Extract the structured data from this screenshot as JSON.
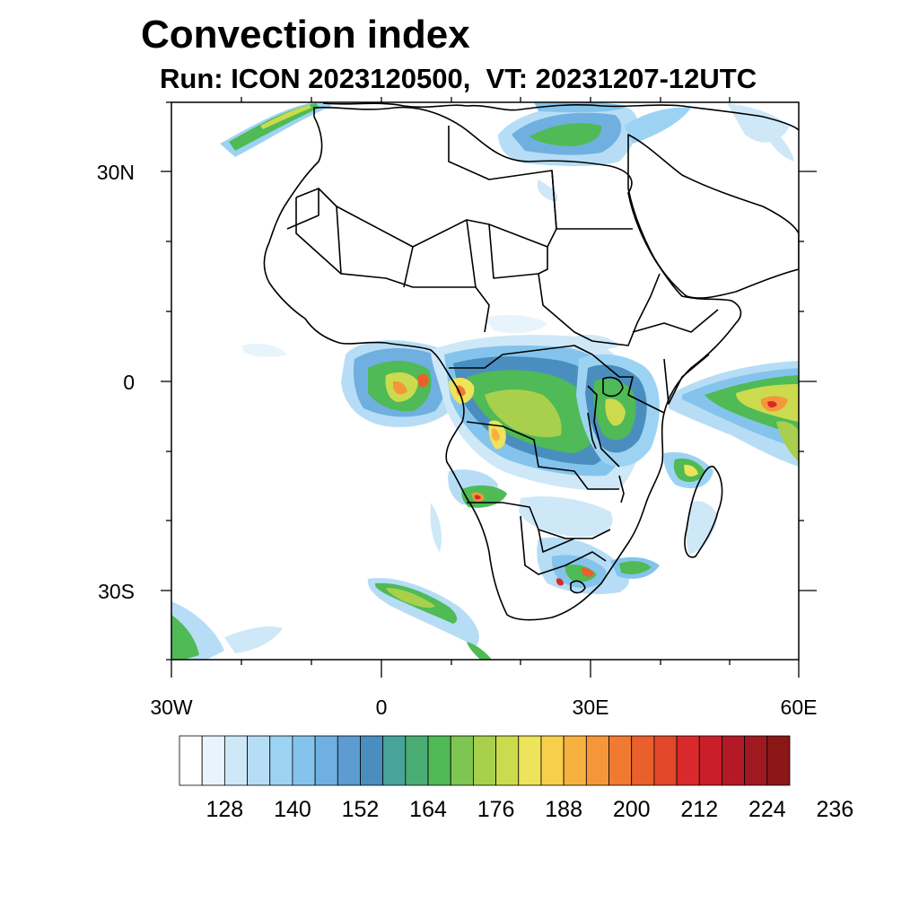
{
  "title": "Convection index",
  "subtitle": "Run: ICON 2023120500,  VT: 20231207-12UTC",
  "axes": {
    "lat_labels": [
      "30N",
      "0",
      "30S"
    ],
    "lon_labels": [
      "30W",
      "0",
      "30E",
      "60E"
    ]
  },
  "map_extent": {
    "lon_min": -30,
    "lon_max": 60,
    "lat_min": -40,
    "lat_max": 40
  },
  "colorbar": {
    "labels": [
      "128",
      "140",
      "152",
      "164",
      "176",
      "188",
      "200",
      "212",
      "224",
      "236"
    ],
    "colors": [
      "#ffffff",
      "#e8f4fc",
      "#cfe8f8",
      "#b6ddf5",
      "#9dd3f2",
      "#84c4ec",
      "#6fb0e0",
      "#5c9cd0",
      "#4a8ec0",
      "#48a39a",
      "#4aad74",
      "#4fba56",
      "#7fc552",
      "#a8d04d",
      "#ccdb4e",
      "#eee35a",
      "#f7cf4a",
      "#f8b140",
      "#f6963a",
      "#f17a32",
      "#ea602c",
      "#e24729",
      "#d82a2a",
      "#c81f2a",
      "#b31a26",
      "#9e1a20",
      "#8a1616"
    ]
  },
  "legend": "Convection index"
}
